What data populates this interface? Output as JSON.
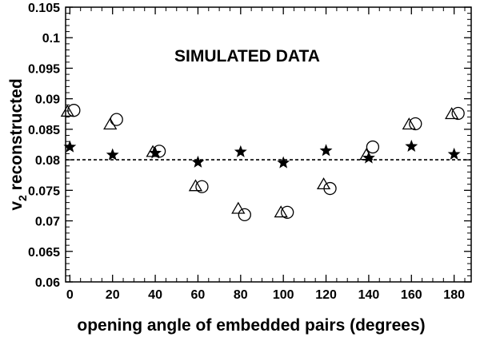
{
  "chart_data": {
    "type": "scatter",
    "title": "",
    "annotation": "SIMULATED DATA",
    "xlabel": "opening angle of embedded pairs (degrees)",
    "ylabel_main": "v",
    "ylabel_sub": "2",
    "ylabel_rest": " reconstructed",
    "xlim": [
      -2,
      188
    ],
    "ylim": [
      0.06,
      0.105
    ],
    "x_ticks": [
      0,
      20,
      40,
      60,
      80,
      100,
      120,
      140,
      160,
      180
    ],
    "x_tick_labels": [
      "0",
      "20",
      "40",
      "60",
      "80",
      "100",
      "120",
      "140",
      "160",
      "180"
    ],
    "y_ticks": [
      0.06,
      0.065,
      0.07,
      0.075,
      0.08,
      0.085,
      0.09,
      0.095,
      0.1,
      0.105
    ],
    "y_tick_labels": [
      "0.06",
      "0.065",
      "0.07",
      "0.075",
      "0.08",
      "0.085",
      "0.09",
      "0.095",
      "0.1",
      "0.105"
    ],
    "reference_line": {
      "y": 0.08,
      "style": "dashed"
    },
    "grid": false,
    "series": [
      {
        "marker": "star",
        "filled": true,
        "x": [
          0,
          20,
          40,
          60,
          80,
          100,
          120,
          140,
          160,
          180
        ],
        "y": [
          0.0821,
          0.0808,
          0.0811,
          0.0796,
          0.0813,
          0.0795,
          0.0815,
          0.0803,
          0.0822,
          0.0809
        ]
      },
      {
        "marker": "triangle",
        "filled": false,
        "x": [
          0,
          20,
          40,
          60,
          80,
          100,
          120,
          140,
          160,
          180
        ],
        "y": [
          0.0878,
          0.0857,
          0.0812,
          0.0756,
          0.0719,
          0.0713,
          0.0759,
          0.0807,
          0.0857,
          0.0874
        ]
      },
      {
        "marker": "circle",
        "filled": false,
        "x": [
          0,
          20,
          40,
          60,
          80,
          100,
          120,
          140,
          160,
          180
        ],
        "y": [
          0.0881,
          0.0866,
          0.0814,
          0.0756,
          0.071,
          0.0714,
          0.0753,
          0.0821,
          0.0859,
          0.0876
        ]
      }
    ]
  }
}
